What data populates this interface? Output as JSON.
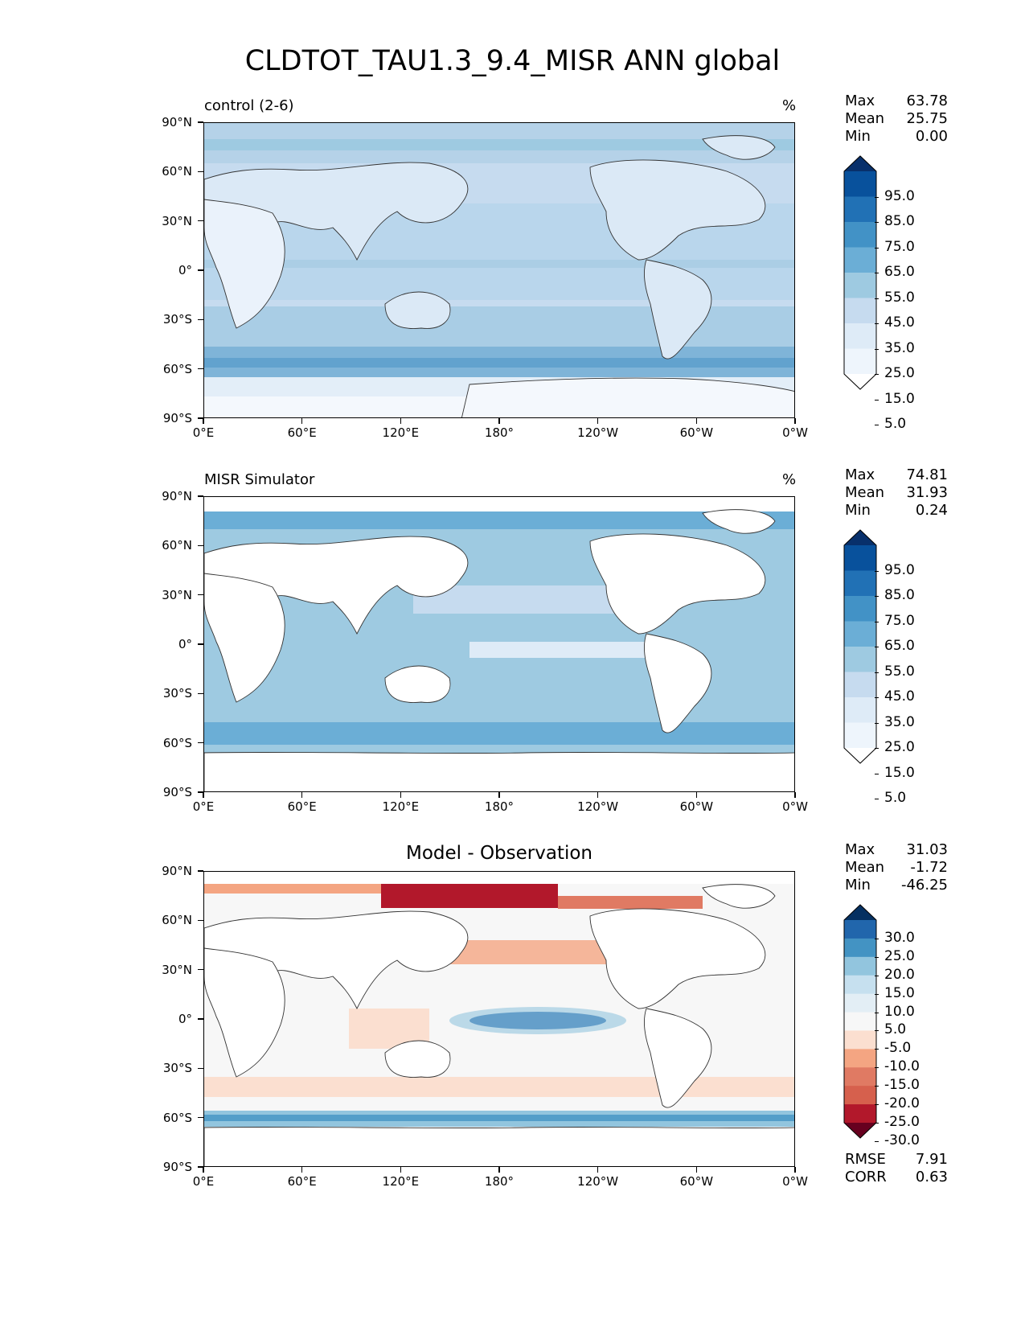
{
  "figure": {
    "title": "CLDTOT_TAU1.3_9.4_MISR ANN global"
  },
  "lat_labels": [
    "90°N",
    "60°N",
    "30°N",
    "0°",
    "30°S",
    "60°S",
    "90°S"
  ],
  "lon_labels": [
    "0°E",
    "60°E",
    "120°E",
    "180°",
    "120°W",
    "60°W",
    "0°W"
  ],
  "panels": [
    {
      "id": "control",
      "title_left": "control (2-6)",
      "units": "%",
      "stats": [
        {
          "label": "Max",
          "value": "63.78"
        },
        {
          "label": "Mean",
          "value": "25.75"
        },
        {
          "label": "Min",
          "value": "0.00"
        }
      ],
      "colorbar": {
        "labels": [
          "95.0",
          "85.0",
          "75.0",
          "65.0",
          "55.0",
          "45.0",
          "35.0",
          "25.0",
          "15.0",
          "5.0"
        ],
        "colors": [
          "#08306b",
          "#08519c",
          "#2171b5",
          "#4292c6",
          "#6baed6",
          "#9ecae1",
          "#c6dbef",
          "#deebf7",
          "#eef5fc",
          "#ffffff"
        ]
      }
    },
    {
      "id": "observation",
      "title_left": "MISR Simulator",
      "units": "%",
      "stats": [
        {
          "label": "Max",
          "value": "74.81"
        },
        {
          "label": "Mean",
          "value": "31.93"
        },
        {
          "label": "Min",
          "value": "0.24"
        }
      ],
      "colorbar": {
        "labels": [
          "95.0",
          "85.0",
          "75.0",
          "65.0",
          "55.0",
          "45.0",
          "35.0",
          "25.0",
          "15.0",
          "5.0"
        ],
        "colors": [
          "#08306b",
          "#08519c",
          "#2171b5",
          "#4292c6",
          "#6baed6",
          "#9ecae1",
          "#c6dbef",
          "#deebf7",
          "#eef5fc",
          "#ffffff"
        ]
      }
    },
    {
      "id": "difference",
      "title_center": "Model - Observation",
      "stats": [
        {
          "label": "Max",
          "value": "31.03"
        },
        {
          "label": "Mean",
          "value": "-1.72"
        },
        {
          "label": "Min",
          "value": "-46.25"
        }
      ],
      "metrics": [
        {
          "label": "RMSE",
          "value": "7.91"
        },
        {
          "label": "CORR",
          "value": "0.63"
        }
      ],
      "colorbar": {
        "labels": [
          "30.0",
          "25.0",
          "20.0",
          "15.0",
          "10.0",
          "5.0",
          "-5.0",
          "-10.0",
          "-15.0",
          "-20.0",
          "-25.0",
          "-30.0"
        ],
        "colors": [
          "#053061",
          "#2166ac",
          "#4393c3",
          "#92c5de",
          "#c6e0ef",
          "#e3eef5",
          "#f7f7f7",
          "#fbdfd0",
          "#f4a582",
          "#e07a63",
          "#d6604d",
          "#b2182b",
          "#67001f"
        ]
      }
    }
  ]
}
